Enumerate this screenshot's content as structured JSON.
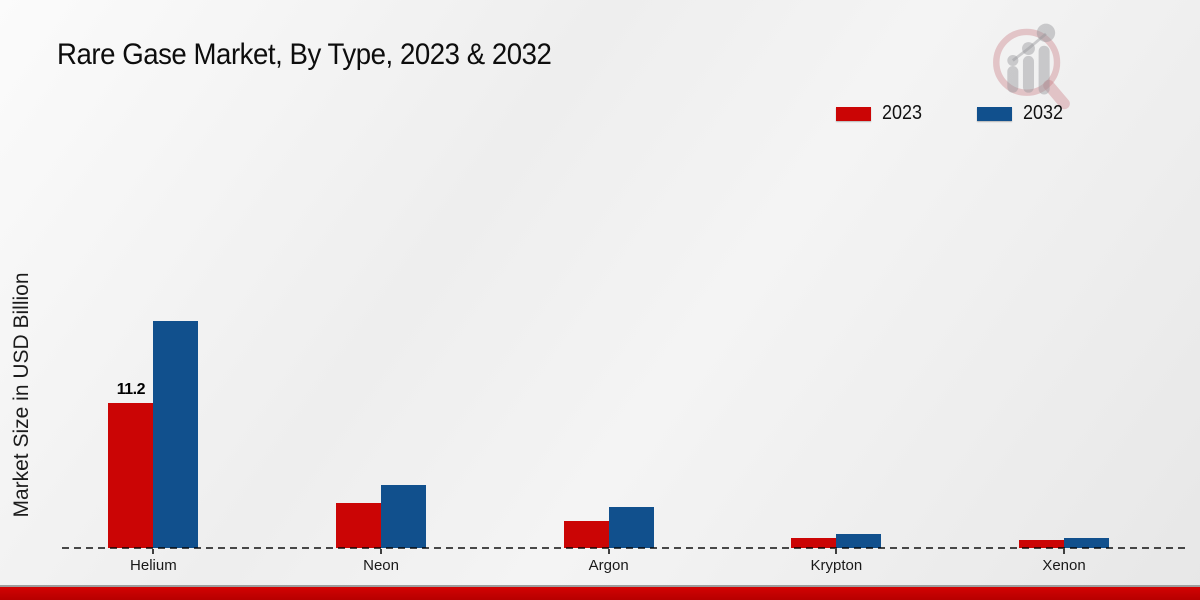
{
  "title": "Rare Gase Market, By Type, 2023 & 2032",
  "y_axis_label": "Market Size in USD Billion",
  "legend": {
    "items": [
      {
        "label": "2023",
        "color": "#cb0505"
      },
      {
        "label": "2032",
        "color": "#11508d"
      }
    ]
  },
  "watermark": {
    "name": "market-research-magnifier-logo"
  },
  "colors": {
    "series_2023": "#cb0505",
    "series_2032": "#11508d",
    "footer_strip": "#c40000",
    "axis_dash": "#4c4c4c"
  },
  "chart_data": {
    "type": "bar",
    "title": "Rare Gase Market, By Type, 2023 & 2032",
    "categories": [
      "Helium",
      "Neon",
      "Argon",
      "Krypton",
      "Xenon"
    ],
    "series": [
      {
        "name": "2023",
        "color": "#cb0505",
        "values": [
          11.2,
          3.5,
          2.1,
          0.8,
          0.6
        ]
      },
      {
        "name": "2032",
        "color": "#11508d",
        "values": [
          17.5,
          4.9,
          3.2,
          1.1,
          0.8
        ]
      }
    ],
    "xlabel": "",
    "ylabel": "Market Size in USD Billion",
    "ylim": [
      0,
      20
    ],
    "grid": false,
    "y_axis_ticks_visible": false,
    "legend_position": "top-right",
    "bar_labels": [
      {
        "series": "2023",
        "category": "Helium",
        "text": "11.2"
      }
    ]
  }
}
